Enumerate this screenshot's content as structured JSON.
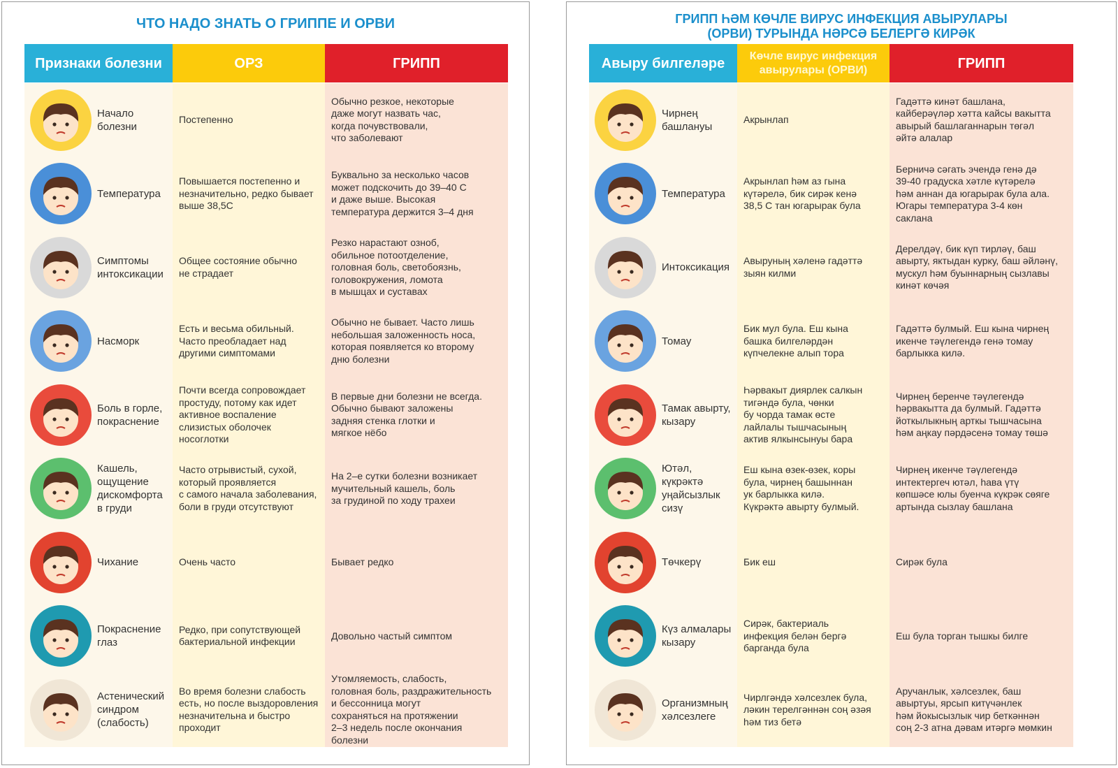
{
  "panels": [
    {
      "title": "ЧТО НАДО ЗНАТЬ О ГРИППЕ И ОРВИ",
      "headers": [
        "Признаки болезни",
        "ОРЗ",
        "ГРИПП"
      ],
      "rows": [
        [
          "Начало\nболезни",
          "Постепенно",
          "Обычно резкое, некоторые\nдаже могут назвать час,\nкогда почувствовали,\nчто заболевают"
        ],
        [
          "Температура",
          "Повышается постепенно и\nнезначительно, редко бывает\nвыше 38,5С",
          "Буквально за несколько часов\nможет подскочить до 39–40 С\nи даже выше. Высокая\nтемпература держится 3–4 дня"
        ],
        [
          "Симптомы\nинтоксикации",
          "Общее состояние обычно\nне страдает",
          "Резко нарастают озноб,\nобильное потоотделение,\nголовная боль, светобоязнь,\nголовокружения, ломота\nв мышцах и суставах"
        ],
        [
          "Насморк",
          "Есть и весьма обильный.\nЧасто преобладает над\nдругими симптомами",
          "Обычно не бывает. Часто лишь\nнебольшая заложенность носа,\nкоторая появляется ко второму\nдню болезни"
        ],
        [
          "Боль в горле,\nпокраснение",
          "Почти всегда сопровождает\nпростуду, потому как идет\nактивное воспаление\nслизистых оболочек\nносоглотки",
          "В первые дни болезни не всегда.\nОбычно бывают заложены\nзадняя стенка глотки и\nмягкое нёбо"
        ],
        [
          "Кашель,\nощущение\nдискомфорта\nв груди",
          "Часто отрывистый, сухой,\nкоторый проявляется\nс самого начала заболевания,\nболи в груди отсутствуют",
          "На 2–е сутки болезни возникает\nмучительный кашель, боль\nза грудиной по ходу трахеи"
        ],
        [
          "Чихание",
          "Очень часто",
          "Бывает редко"
        ],
        [
          "Покраснение\nглаз",
          "Редко, при сопутствующей\nбактериальной инфекции",
          "Довольно частый симптом"
        ],
        [
          "Астенический\nсиндром\n(слабость)",
          "Во время болезни слабость\nесть, но после выздоровления\nнезначительна и быстро\nпроходит",
          "Утомляемость, слабость,\nголовная боль, раздражительность\nи бессонница могут\nсохраняться на протяжении\n2–3 недель после окончания\nболезни"
        ]
      ]
    },
    {
      "title": "ГРИПП ҺӘМ КӨЧЛЕ ВИРУС ИНФЕКЦИЯ АВЫРУЛАРЫ\n(ОРВИ) ТУРЫНДА НӘРСӘ БЕЛЕРГӘ КИРӘК",
      "headers": [
        "Авыру билгеләре",
        "Көчле вирус инфекция\nавырулары (ОРВИ)",
        "ГРИПП"
      ],
      "rows": [
        [
          "Чирнең\nбашлануы",
          "Акрынлап",
          "Гадәттә кинәт башлана,\nкайберәүләр хәтта кайсы вакытта\nавырый башлаганнарын төгәл\nәйтә алалар"
        ],
        [
          "Температура",
          "Акрынлап һәм аз гына\nкүтәрелә, бик сирәк кенә\n38,5 С тан югарырак була",
          "Берничә сәгать эчендә генә дә\n39-40 градуска хәтле күтәрелә\nһәм аннан да югарырак була ала.\nЮгары температура 3-4 көн\nсаклана"
        ],
        [
          "Интоксикация",
          "Авыруның хәленә гадәттә\nзыян килми",
          "Дерелдәү, бик күп тирләү, баш\nавырту, яктыдан курку, баш әйләнү,\nмускул һәм буыннарның сызлавы\nкинәт көчәя"
        ],
        [
          "Томау",
          "Бик мул була. Еш кына\nбашка билгеләрдән\nкүпчелекне алып тора",
          "Гадәттә булмый. Еш кына чирнең\nикенче тәүлегендә генә томау\nбарлыкка килә."
        ],
        [
          "Тамак авырту,\nкызару",
          "Һәрвакыт диярлек салкын\nтигәндә була, чөнки\nбу чорда тамак өсте\nлайлалы тышчасының\nактив ялкынсынуы бара",
          "Чирнең беренче тәүлегендә\nһәрвакытта да булмый. Гадәттә\nйоткылыкның арткы тышчасына\nһәм аңкау пәрдәсенә томау төшә"
        ],
        [
          "Ютәл,\nкүкрәктә\nуңайсызлык\nсизү",
          "Еш кына өзек-өзек, коры\nбула, чирнең башыннан\nук барлыкка килә.\nКүкрәктә авырту булмый.",
          "Чирнең икенче тәүлегендә\nинтектергеч ютәл, һава үтү\nкөпшәсе юлы буенча күкрәк сөяге\nартында сызлау башлана"
        ],
        [
          "Төчкерү",
          "Бик еш",
          "Сирәк була"
        ],
        [
          "Күз алмалары\nкызару",
          "Сирәк, бактериаль\nинфекция белән бергә\nбарганда була",
          "Еш була торган тышкы билге"
        ],
        [
          "Организмның\nхәлсезлеге",
          "Чирлгәндә хәлсезлек була,\nләкин терелгәннән соң әзәя\nһәм тиз бетә",
          "Аручанлык, хәлсезлек, баш\nавыртуы, ярсып китүчәнлек\nһәм йокысызлык чир беткәннән\nсоң 2-3 атна дәвам итәргә мөмкин"
        ]
      ]
    }
  ]
}
